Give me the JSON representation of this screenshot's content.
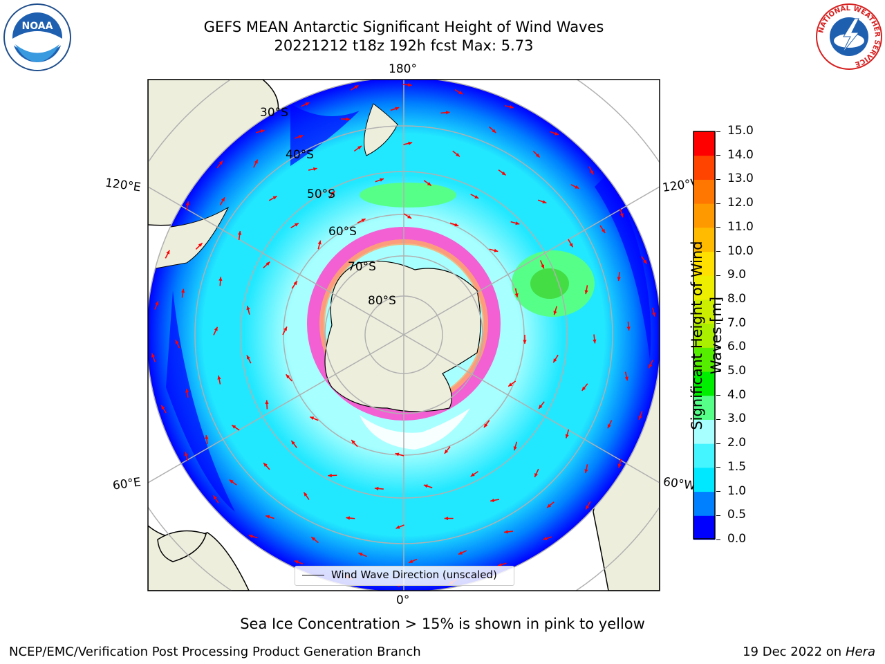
{
  "header": {
    "title_line1": "GEFS MEAN Antarctic Significant Height of Wind Waves",
    "title_line2": "20221212 t18z 192h fcst   Max: 5.73"
  },
  "logos": {
    "noaa_text": "NOAA",
    "nws_ring_text": "NATIONAL WEATHER SERVICE"
  },
  "map": {
    "projection": "south-polar-stereographic",
    "longitude_labels": {
      "top": "180°",
      "bottom": "0°",
      "left_upper": "120°E",
      "left_lower": "60°E",
      "right_upper": "120°W",
      "right_lower": "60°W"
    },
    "latitude_labels": [
      "30°S",
      "40°S",
      "50°S",
      "60°S",
      "70°S",
      "80°S"
    ],
    "legend_label": "Wind Wave Direction (unscaled)",
    "ocean_color": "#22e8ff",
    "land_color": "#eeeedd",
    "arrow_color": "#ff0000"
  },
  "colorbar": {
    "title": "Significant Height of Wind Waves [m]",
    "ticks": [
      "0.0",
      "0.5",
      "1.0",
      "1.5",
      "2.0",
      "3.0",
      "4.0",
      "5.0",
      "6.0",
      "7.0",
      "8.0",
      "9.0",
      "10.0",
      "11.0",
      "12.0",
      "13.0",
      "14.0",
      "15.0"
    ],
    "colors": [
      "#0000ff",
      "#0080ff",
      "#00e8ff",
      "#44f4ff",
      "#a8ffff",
      "#55ff88",
      "#00ee00",
      "#55ee00",
      "#aaee00",
      "#ccee00",
      "#eeee00",
      "#ffe000",
      "#ffbb00",
      "#ff9900",
      "#ff7700",
      "#ff4400",
      "#ff0000"
    ]
  },
  "footer": {
    "sea_ice_note": "Sea Ice Concentration > 15% is shown in pink to yellow",
    "credit": "NCEP/EMC/Verification Post Processing Product Generation Branch",
    "date": "19 Dec 2022 on",
    "machine": "Hera"
  }
}
